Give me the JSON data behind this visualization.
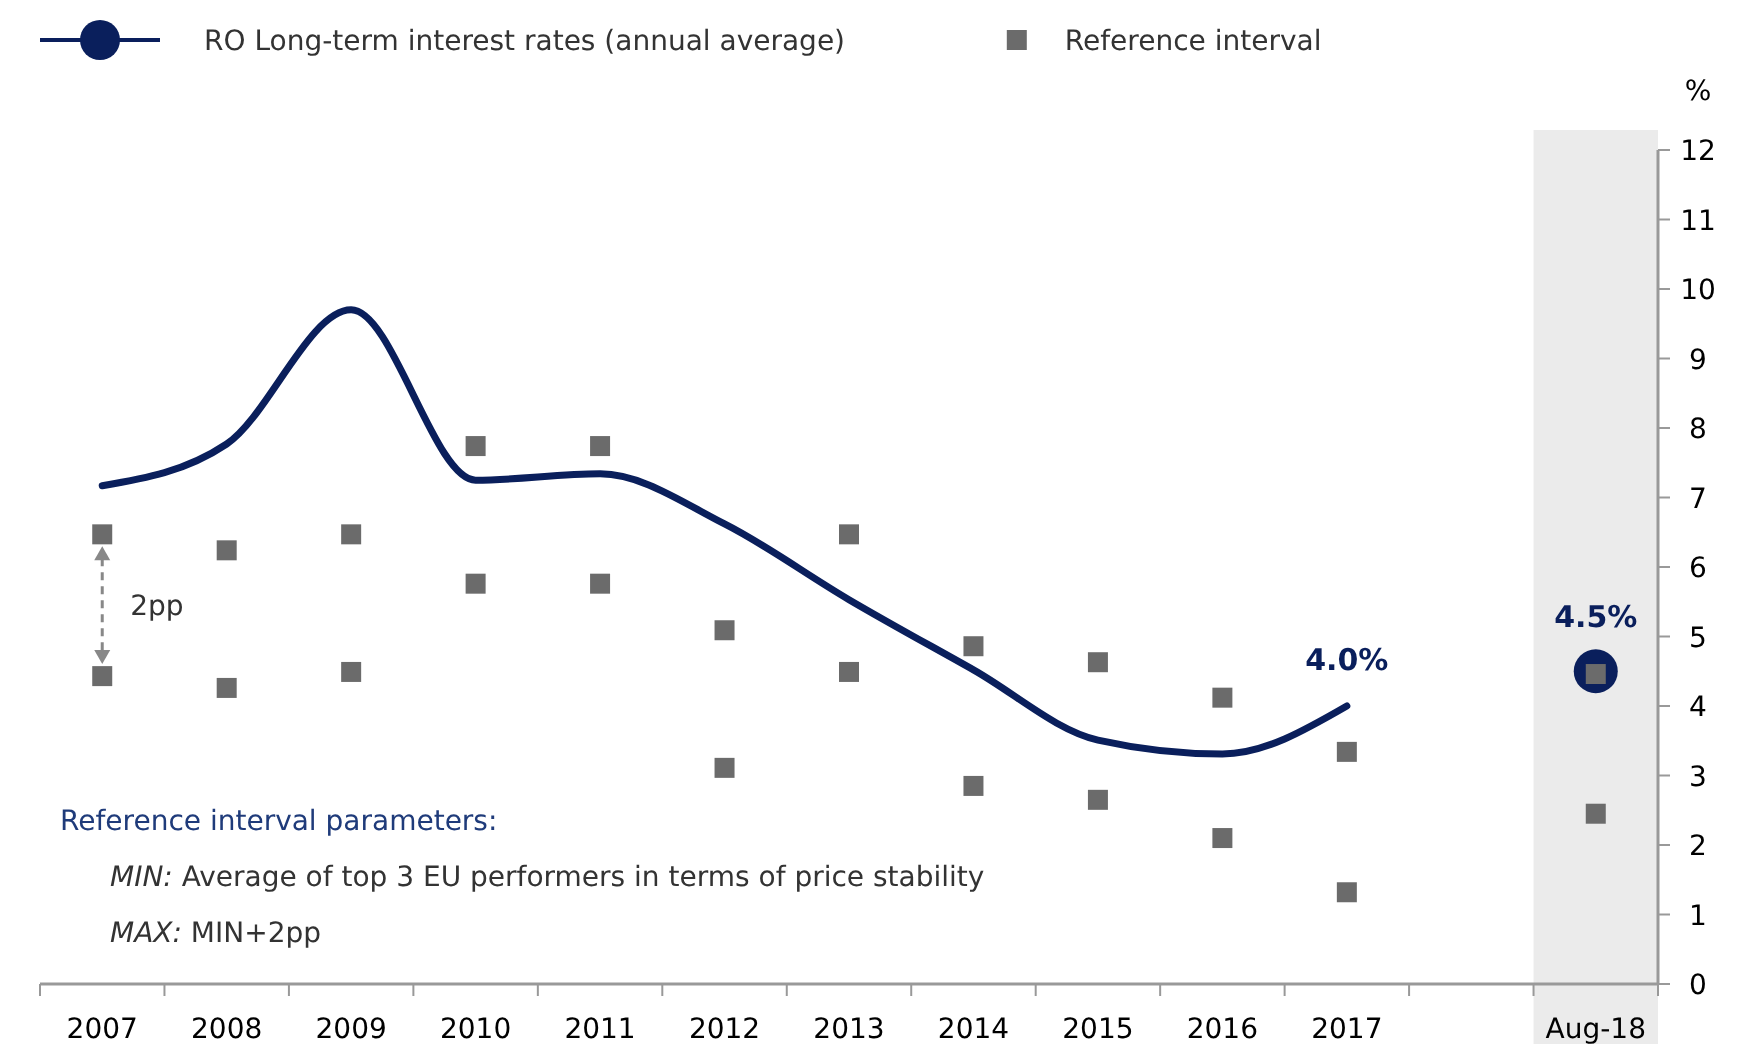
{
  "chart_data": {
    "type": "line",
    "categories": [
      "2007",
      "2008",
      "2009",
      "2010",
      "2011",
      "2012",
      "2013",
      "2014",
      "2015",
      "2016",
      "2017",
      null,
      "Aug-18"
    ],
    "ylabel": "%",
    "ylim": [
      0,
      12
    ],
    "yticks": [
      0,
      1,
      2,
      3,
      4,
      5,
      6,
      7,
      8,
      9,
      10,
      11,
      12
    ],
    "legend": "top left",
    "series": [
      {
        "name": "RO Long-term interest rates (annual average)",
        "color": "#0a1f5c",
        "marker": "none",
        "values": [
          7.17,
          7.77,
          9.7,
          7.25,
          7.34,
          6.62,
          5.53,
          4.52,
          3.51,
          3.31,
          4.0,
          null,
          null
        ],
        "value_labels": [
          null,
          null,
          null,
          null,
          null,
          null,
          null,
          null,
          null,
          null,
          "4.0%",
          null,
          null
        ]
      },
      {
        "type": "scatter",
        "color": "#0a1f5c",
        "marker": "circle",
        "values": [
          null,
          null,
          null,
          null,
          null,
          null,
          null,
          null,
          null,
          null,
          null,
          null,
          4.5
        ],
        "value_labels": [
          null,
          null,
          null,
          null,
          null,
          null,
          null,
          null,
          null,
          null,
          null,
          null,
          "4.5%"
        ]
      },
      {
        "name": "Reference interval",
        "type": "scatter",
        "color": "#6b6b6b",
        "marker": "square",
        "values": [
          6.47,
          6.24,
          6.47,
          7.74,
          7.74,
          5.09,
          6.47,
          4.86,
          4.63,
          4.12,
          3.34,
          null,
          4.46
        ]
      },
      {
        "type": "scatter",
        "color": "#6b6b6b",
        "marker": "square",
        "values": [
          4.43,
          4.26,
          4.49,
          5.76,
          5.76,
          3.11,
          4.49,
          2.85,
          2.65,
          2.1,
          1.32,
          null,
          2.45
        ]
      }
    ],
    "bands": [
      {
        "axis": "x",
        "from": "Aug-18",
        "to": "Aug-18",
        "color": "#ebebeb"
      }
    ],
    "annotations": [
      "2pp",
      "Reference interval parameters:",
      "MIN: Average of top 3 EU performers in terms of price stability",
      "MAX: MIN+2pp"
    ]
  }
}
